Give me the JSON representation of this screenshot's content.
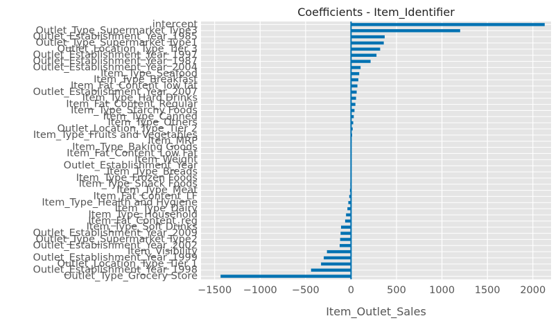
{
  "chart_data": {
    "type": "bar",
    "orientation": "horizontal",
    "title": "Coefficients - Item_Identifier",
    "xlabel": "Item_Outlet_Sales",
    "ylabel": "",
    "xlim": [
      -1650,
      2200
    ],
    "xticks": [
      -1500,
      -1000,
      -500,
      0,
      500,
      1000,
      1500,
      2000
    ],
    "xtick_labels": [
      "−1500",
      "−1000",
      "−500",
      "0",
      "500",
      "1000",
      "1500",
      "2000"
    ],
    "grid": true,
    "bar_color": "#0072B2",
    "background_color": "#E5E5E5",
    "grid_color": "#FFFFFF",
    "categories": [
      "intercept",
      "Outlet_Type_Supermarket Type3",
      "Outlet_Establishment_Year_1985",
      "Outlet_Type_Supermarket Type1",
      "Outlet_Location_Type_Tier 3",
      "Outlet_Establishment_Year_1997",
      "Outlet_Establishment_Year_1987",
      "Outlet_Establishment_Year_2004",
      "Item_Type_Seafood",
      "Item_Type_Breakfast",
      "Item_Fat_Content_low fat",
      "Outlet_Establishment_Year_2007",
      "Item_Type_Hard Drinks",
      "Item_Fat_Content_Regular",
      "Item_Type_Starchy Foods",
      "Item_Type_Canned",
      "Item_Type_Others",
      "Outlet_Location_Type_Tier 2",
      "Item_Type_Fruits and Vegetables",
      "Item_MRP",
      "Item_Type_Baking Goods",
      "Item_Fat_Content_Low Fat",
      "Item_Weight",
      "Outlet_Establishment_Year",
      "Item_Type_Breads",
      "Item_Type_Frozen Foods",
      "Item_Type_Snack Foods",
      "Item_Type_Meat",
      "Item_Fat_Content_LF",
      "Item_Type_Health and Hygiene",
      "Item_Type_Dairy",
      "Item_Type_Household",
      "Item_Fat_Content_reg",
      "Item_Type_Soft Drinks",
      "Outlet_Establishment_Year_2009",
      "Outlet_Type_Supermarket Type2",
      "Outlet_Establishment_Year_2002",
      "Item_Visibility",
      "Outlet_Establishment_Year_1999",
      "Outlet_Location_Type_Tier 1",
      "Outlet_Establishment_Year_1998",
      "Outlet_Type_Grocery Store"
    ],
    "values": [
      2130,
      1200,
      370,
      360,
      320,
      280,
      215,
      105,
      90,
      80,
      70,
      62,
      55,
      48,
      38,
      30,
      24,
      18,
      12,
      8,
      5,
      3,
      2,
      1,
      -3,
      -5,
      -8,
      -12,
      -20,
      -30,
      -40,
      -55,
      -65,
      -110,
      -115,
      -120,
      -125,
      -265,
      -300,
      -330,
      -440,
      -1435
    ]
  }
}
